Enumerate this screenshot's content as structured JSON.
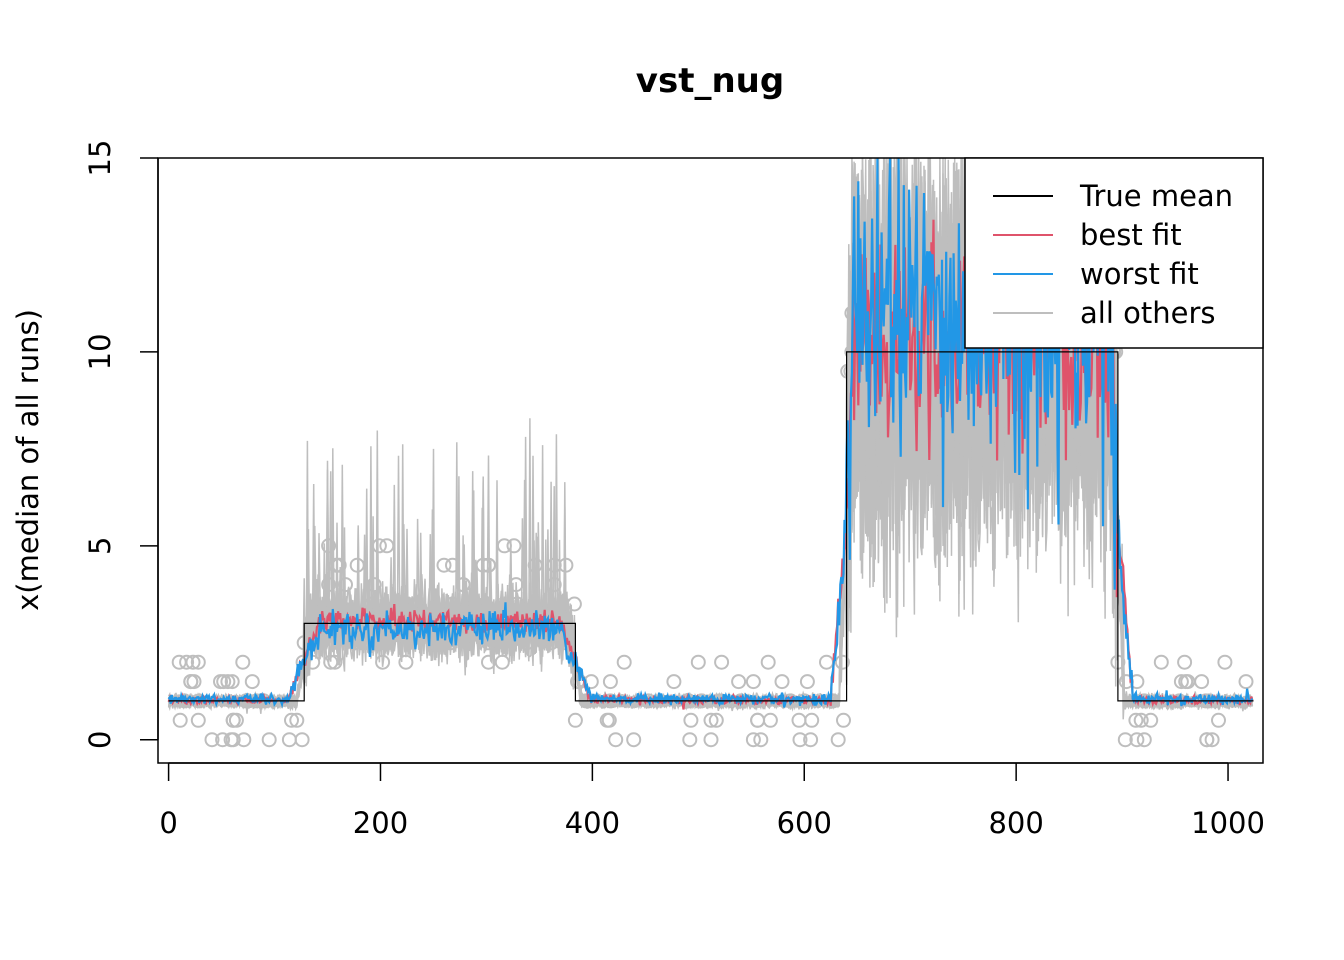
{
  "chart_data": {
    "type": "line",
    "title": "vst_nug",
    "xlabel": "",
    "ylabel": "x(median of all runs)",
    "xlim": [
      -10,
      1033
    ],
    "ylim": [
      -0.6,
      15
    ],
    "x_ticks": [
      0,
      200,
      400,
      600,
      800,
      1000
    ],
    "y_ticks": [
      0,
      5,
      10,
      15
    ],
    "x_tick_labels": [
      "0",
      "200",
      "400",
      "600",
      "800",
      "1000"
    ],
    "y_tick_labels": [
      "0",
      "5",
      "10",
      "15"
    ],
    "legend_position": "top-right",
    "segments": [
      {
        "x0": 0,
        "x1": 128,
        "level": 1.0
      },
      {
        "x0": 128,
        "x1": 384,
        "level": 3.0
      },
      {
        "x0": 384,
        "x1": 640,
        "level": 1.0
      },
      {
        "x0": 640,
        "x1": 896,
        "level": 10.0
      },
      {
        "x0": 896,
        "x1": 1024,
        "level": 1.0
      }
    ],
    "series": [
      {
        "name": "True mean",
        "color": "#000000",
        "kind": "true"
      },
      {
        "name": "best fit",
        "color": "#DF536B",
        "kind": "best"
      },
      {
        "name": "worst fit",
        "color": "#2297E6",
        "kind": "worst"
      },
      {
        "name": "all others",
        "color": "#BEBEBE",
        "kind": "others",
        "count": 24
      }
    ]
  }
}
